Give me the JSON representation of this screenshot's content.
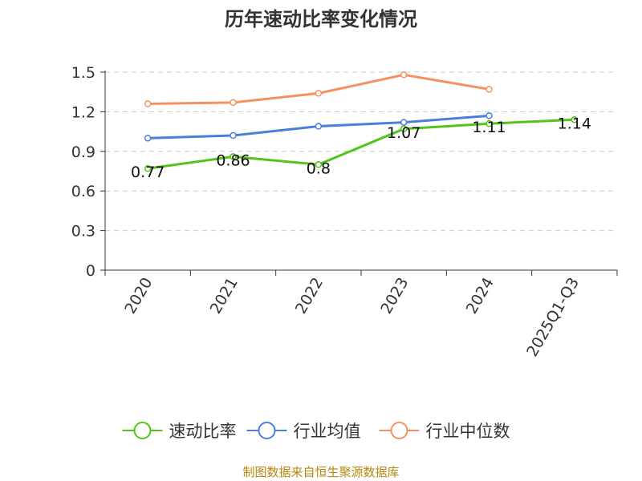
{
  "chart_data": {
    "type": "line",
    "title": "历年速动比率变化情况",
    "categories": [
      "2020",
      "2021",
      "2022",
      "2023",
      "2024",
      "2025Q1-Q3"
    ],
    "ylim": [
      0,
      1.5
    ],
    "yticks": [
      "0",
      "0.3",
      "0.6",
      "0.9",
      "1.2",
      "1.5"
    ],
    "grid": true,
    "legend_position": "bottom",
    "series": [
      {
        "name": "速动比率",
        "color": "#52c41a",
        "values": [
          0.77,
          0.86,
          0.8,
          1.07,
          1.11,
          1.14
        ],
        "labels": [
          "0.77",
          "0.86",
          "0.8",
          "1.07",
          "1.11",
          "1.14"
        ]
      },
      {
        "name": "行业均值",
        "color": "#4a7fd9",
        "values": [
          1.0,
          1.02,
          1.09,
          1.12,
          1.17,
          null
        ]
      },
      {
        "name": "行业中位数",
        "color": "#f79060",
        "values": [
          1.26,
          1.27,
          1.34,
          1.48,
          1.37,
          null
        ]
      }
    ]
  },
  "source": "制图数据来自恒生聚源数据库"
}
